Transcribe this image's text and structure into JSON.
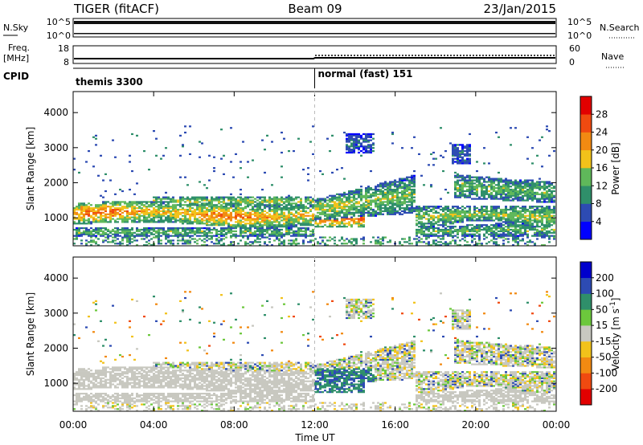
{
  "header": {
    "radar": "TIGER (fitACF)",
    "beam": "Beam 09",
    "date": "23/Jan/2015"
  },
  "strips": {
    "nsky_label": "N.Sky",
    "nsearch_label": "N.Search",
    "nsky_ticks": [
      "10^5",
      "10^0"
    ],
    "nsearch_ticks": [
      "10^5",
      "10^0"
    ],
    "freq_label_line1": "Freq.",
    "freq_label_line2": "[MHz]",
    "freq_ticks": [
      18,
      8
    ],
    "nave_label": "Nave",
    "nave_ticks": [
      60,
      0
    ],
    "cpid_label": "CPID",
    "modes": [
      {
        "name": "themis 3300",
        "start_hour": 0
      },
      {
        "name": "normal (fast) 151",
        "start_hour": 12
      }
    ]
  },
  "chart_data": [
    {
      "type": "heatmap",
      "title": "",
      "xlabel": "Time UT",
      "ylabel": "Slant Range [km]",
      "x_ticks": [
        "00:00",
        "04:00",
        "08:00",
        "12:00",
        "16:00",
        "20:00",
        "00:00"
      ],
      "x_tick_hours": [
        0,
        4,
        8,
        12,
        16,
        20,
        24
      ],
      "xlim": [
        0,
        24
      ],
      "y_ticks": [
        1000,
        2000,
        3000,
        4000
      ],
      "ylim": [
        200,
        4600
      ],
      "colorbar": {
        "label": "Power [dB]",
        "ticks": [
          4,
          8,
          12,
          16,
          20,
          24,
          28
        ],
        "range": [
          0,
          32
        ],
        "colors": [
          "#0000ff",
          "#2d4bb3",
          "#2f8f6a",
          "#5fb85a",
          "#f2c21a",
          "#f28a12",
          "#f04a10",
          "#e20000"
        ]
      },
      "features": [
        {
          "name": "main band",
          "t_start": 0,
          "t_end": 12,
          "range_km": [
            800,
            1400
          ],
          "power_db": 22
        },
        {
          "name": "post-midnight band",
          "t_start": 12.5,
          "t_end": 16.5,
          "range_km": [
            1000,
            2300
          ],
          "power_db": 18
        },
        {
          "name": "evening band",
          "t_start": 17.5,
          "t_end": 23.5,
          "range_km": [
            600,
            2200
          ],
          "power_db": 16
        }
      ]
    },
    {
      "type": "heatmap",
      "title": "",
      "xlabel": "Time UT",
      "ylabel": "Slant Range [km]",
      "x_ticks": [
        "00:00",
        "04:00",
        "08:00",
        "12:00",
        "16:00",
        "20:00",
        "00:00"
      ],
      "x_tick_hours": [
        0,
        4,
        8,
        12,
        16,
        20,
        24
      ],
      "xlim": [
        0,
        24
      ],
      "y_ticks": [
        1000,
        2000,
        3000,
        4000
      ],
      "ylim": [
        200,
        4600
      ],
      "colorbar": {
        "label": "Velocity [m s^-1]",
        "ticks": [
          -200,
          -100,
          -50,
          -15,
          15,
          50,
          100,
          200
        ],
        "range": [
          -250,
          250
        ],
        "colors": [
          "#e20000",
          "#f04a10",
          "#f28a12",
          "#f2c21a",
          "#c8c8c0",
          "#6cc83c",
          "#2f8f6a",
          "#2d4bb3",
          "#0000cc"
        ]
      },
      "features": [
        {
          "name": "ground scatter band",
          "t_start": 0,
          "t_end": 12,
          "range_km": [
            800,
            1400
          ],
          "velocity": 0
        },
        {
          "name": "positive flow patch",
          "t_start": 13,
          "t_end": 14,
          "range_km": [
            900,
            1300
          ],
          "velocity": 100
        }
      ]
    }
  ]
}
